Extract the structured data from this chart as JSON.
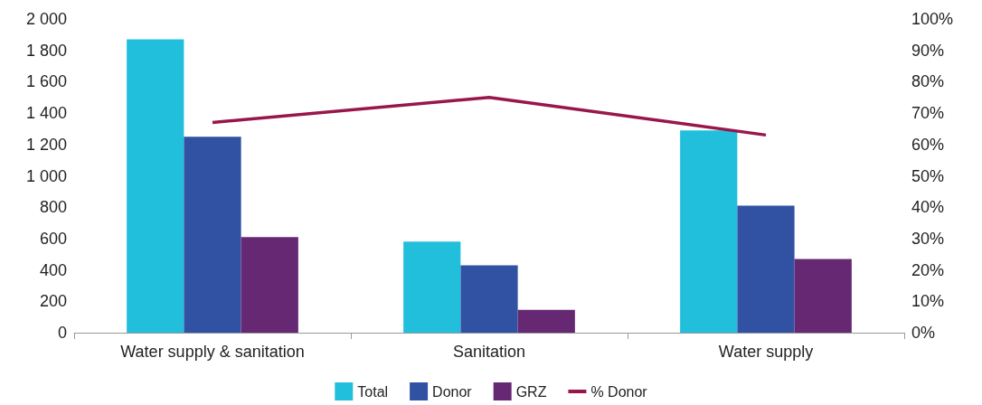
{
  "chart_data": {
    "type": "bar",
    "categories": [
      "Water supply & sanitation",
      "Sanitation",
      "Water supply"
    ],
    "series": [
      {
        "name": "Total",
        "color": "#22bfdd",
        "values": [
          1870,
          580,
          1290
        ]
      },
      {
        "name": "Donor",
        "color": "#3152a3",
        "values": [
          1250,
          430,
          810
        ]
      },
      {
        "name": "GRZ",
        "color": "#662873",
        "values": [
          610,
          145,
          470
        ]
      },
      {
        "name": "% Donor",
        "type": "line",
        "axis": "y2",
        "color": "#98174b",
        "values": [
          67,
          75,
          63
        ]
      }
    ],
    "ylim": [
      0,
      2000
    ],
    "yticks": [
      0,
      200,
      400,
      600,
      800,
      {
        "value": 1000,
        "label": "1 000"
      },
      {
        "value": 1200,
        "label": "1 200"
      },
      {
        "value": 1400,
        "label": "1 400"
      },
      {
        "value": 1600,
        "label": "1 600"
      },
      {
        "value": 1800,
        "label": "1 800"
      },
      {
        "value": 2000,
        "label": "2 000"
      }
    ],
    "y2lim": [
      0,
      100
    ],
    "y2ticks": [
      {
        "value": 0,
        "label": "0%"
      },
      {
        "value": 10,
        "label": "10%"
      },
      {
        "value": 20,
        "label": "20%"
      },
      {
        "value": 30,
        "label": "30%"
      },
      {
        "value": 40,
        "label": "40%"
      },
      {
        "value": 50,
        "label": "50%"
      },
      {
        "value": 60,
        "label": "60%"
      },
      {
        "value": 70,
        "label": "70%"
      },
      {
        "value": 80,
        "label": "80%"
      },
      {
        "value": 90,
        "label": "90%"
      },
      {
        "value": 100,
        "label": "100%"
      }
    ],
    "grid": false,
    "legend": "bottom",
    "marker": "none"
  }
}
